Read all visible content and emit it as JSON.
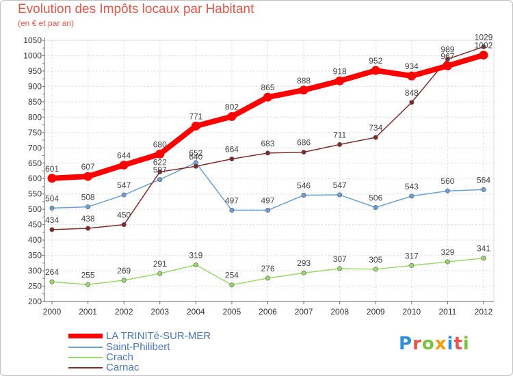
{
  "title": "Evolution des Impôts locaux par Habitant",
  "subtitle": "(en € et par an)",
  "logo_text": "Proxiti",
  "colors": {
    "title": "#e8554a",
    "axis": "#666666",
    "grid": "#d8d8d8",
    "legend_text": "#4b76b5"
  },
  "chart_data": {
    "type": "line",
    "x": [
      "2000",
      "2001",
      "2002",
      "2003",
      "2004",
      "2005",
      "2006",
      "2007",
      "2008",
      "2009",
      "2010",
      "2011",
      "2012"
    ],
    "ylim": [
      200,
      1050
    ],
    "yticks": [
      200,
      250,
      300,
      350,
      400,
      450,
      500,
      550,
      600,
      650,
      700,
      750,
      800,
      850,
      900,
      950,
      1000,
      1050
    ],
    "grid": true,
    "legend_position": "bottom-left",
    "series": [
      {
        "name": "LA TRINITé-SUR-MER",
        "color": "#ff0000",
        "values": [
          601,
          607,
          644,
          680,
          771,
          802,
          865,
          888,
          918,
          952,
          934,
          967,
          1002
        ]
      },
      {
        "name": "Saint-Philibert",
        "color": "#6b9fd6",
        "values": [
          504,
          508,
          547,
          597,
          652,
          497,
          497,
          546,
          547,
          506,
          543,
          560,
          564
        ]
      },
      {
        "name": "Crach",
        "color": "#99d869",
        "values": [
          264,
          255,
          269,
          291,
          319,
          254,
          276,
          293,
          307,
          305,
          317,
          329,
          341
        ]
      },
      {
        "name": "Carnac",
        "color": "#7f2b2b",
        "values": [
          434,
          438,
          450,
          622,
          640,
          664,
          683,
          686,
          711,
          734,
          848,
          989,
          1029
        ]
      }
    ]
  }
}
